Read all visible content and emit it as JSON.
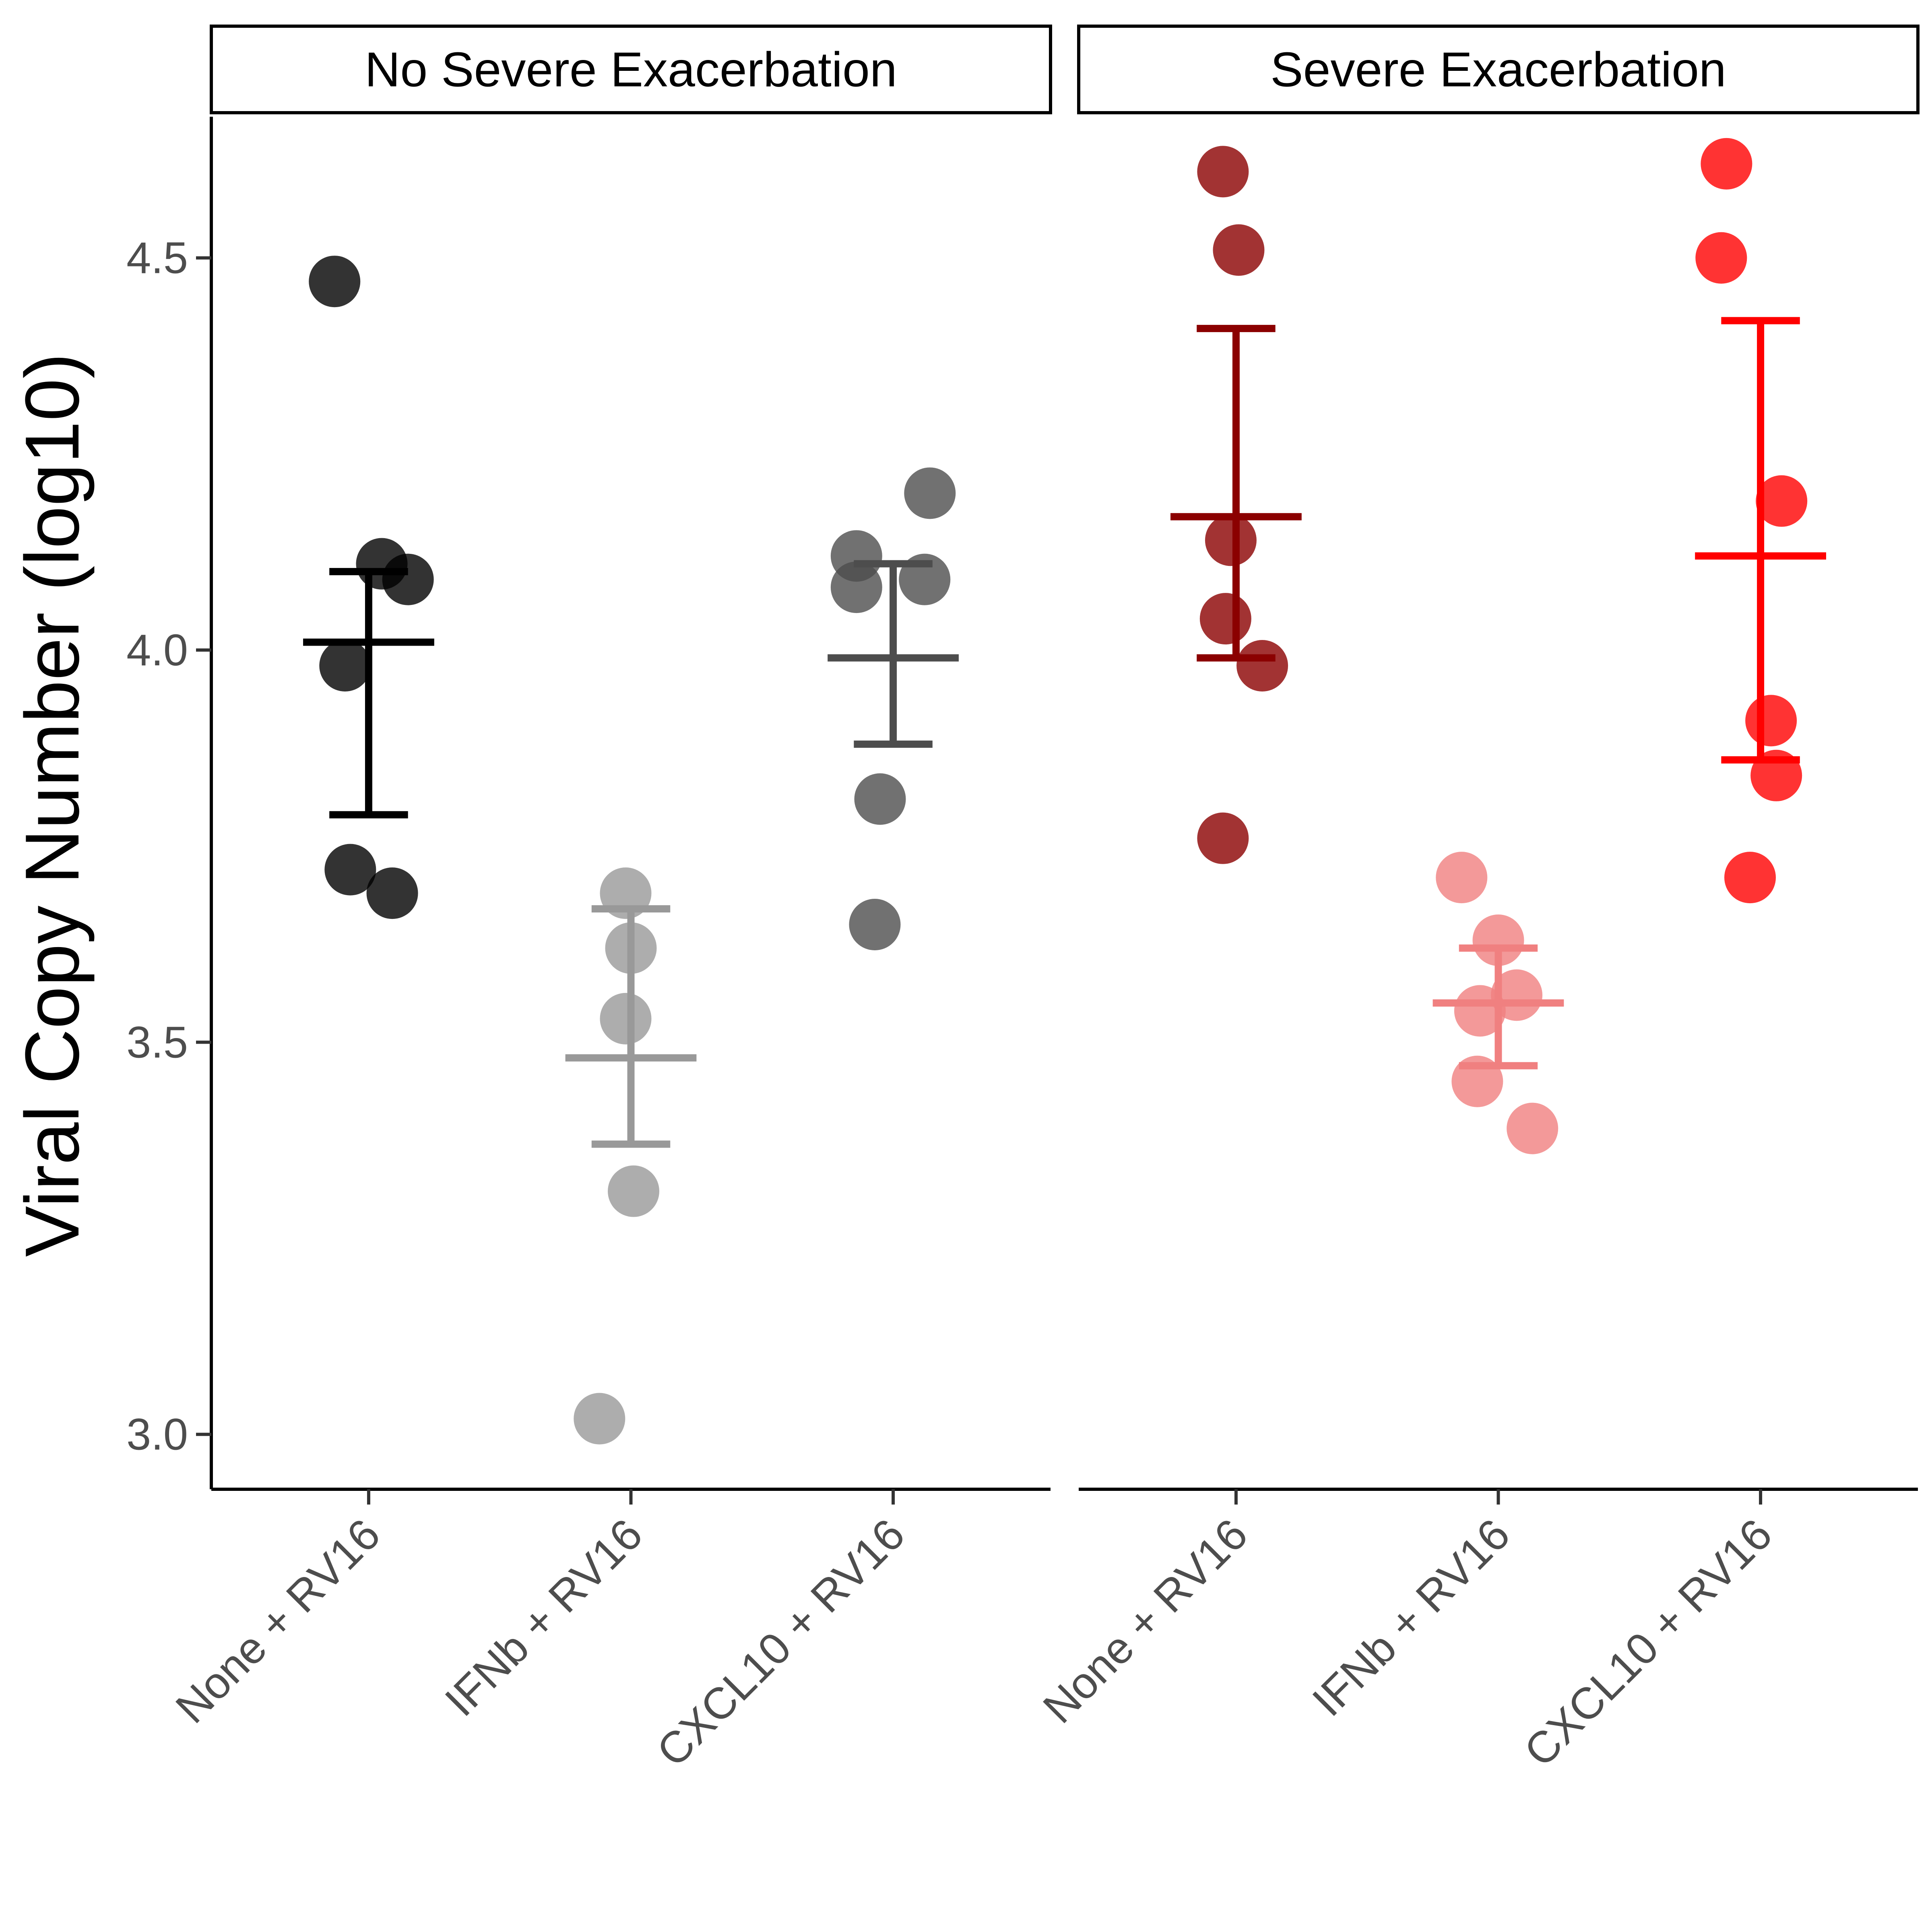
{
  "chart_data": {
    "type": "scatter",
    "subtype": "dot-plot-with-mean-and-error-bars",
    "title": "",
    "xlabel": "",
    "ylabel": "Viral Copy Number (log10)",
    "ylim": [
      2.93,
      4.68
    ],
    "yticks": [
      3.0,
      3.5,
      4.0,
      4.5
    ],
    "ytick_labels": [
      "3.0",
      "3.5",
      "4.0",
      "4.5"
    ],
    "grid": false,
    "legend": "none",
    "categories": [
      "None + RV16",
      "IFNb + RV16",
      "CXCL10 + RV16"
    ],
    "panels": [
      {
        "label": "No Severe Exacerbation",
        "groups": [
          {
            "category": "None + RV16",
            "color": "#000000",
            "points": [
              {
                "x": -0.13,
                "y": 4.47
              },
              {
                "x": 0.05,
                "y": 4.11
              },
              {
                "x": 0.15,
                "y": 4.09
              },
              {
                "x": -0.09,
                "y": 3.98
              },
              {
                "x": -0.07,
                "y": 3.72
              },
              {
                "x": 0.09,
                "y": 3.69
              }
            ],
            "mean": 4.01,
            "lower": 3.79,
            "upper": 4.1
          },
          {
            "category": "IFNb + RV16",
            "color": "#999999",
            "points": [
              {
                "x": -0.02,
                "y": 3.69
              },
              {
                "x": 0.0,
                "y": 3.62
              },
              {
                "x": -0.02,
                "y": 3.53
              },
              {
                "x": 0.01,
                "y": 3.31
              },
              {
                "x": -0.12,
                "y": 3.02
              }
            ],
            "mean": 3.48,
            "lower": 3.37,
            "upper": 3.67
          },
          {
            "category": "CXCL10 + RV16",
            "color": "#4d4d4d",
            "points": [
              {
                "x": 0.14,
                "y": 4.2
              },
              {
                "x": -0.14,
                "y": 4.12
              },
              {
                "x": -0.14,
                "y": 4.08
              },
              {
                "x": 0.12,
                "y": 4.09
              },
              {
                "x": -0.05,
                "y": 3.81
              },
              {
                "x": -0.07,
                "y": 3.65
              }
            ],
            "mean": 3.99,
            "lower": 3.88,
            "upper": 4.11
          }
        ]
      },
      {
        "label": "Severe Exacerbation",
        "groups": [
          {
            "category": "None + RV16",
            "color": "#8b0000",
            "points": [
              {
                "x": -0.05,
                "y": 4.61
              },
              {
                "x": 0.01,
                "y": 4.51
              },
              {
                "x": -0.02,
                "y": 4.14
              },
              {
                "x": -0.04,
                "y": 4.04
              },
              {
                "x": 0.1,
                "y": 3.98
              },
              {
                "x": -0.05,
                "y": 3.76
              }
            ],
            "mean": 4.17,
            "lower": 3.99,
            "upper": 4.41
          },
          {
            "category": "IFNb + RV16",
            "color": "#f08080",
            "points": [
              {
                "x": -0.14,
                "y": 3.71
              },
              {
                "x": 0.0,
                "y": 3.63
              },
              {
                "x": 0.07,
                "y": 3.56
              },
              {
                "x": -0.07,
                "y": 3.54
              },
              {
                "x": -0.08,
                "y": 3.45
              },
              {
                "x": 0.13,
                "y": 3.39
              }
            ],
            "mean": 3.55,
            "lower": 3.47,
            "upper": 3.62
          },
          {
            "category": "CXCL10 + RV16",
            "color": "#ff0000",
            "points": [
              {
                "x": -0.13,
                "y": 4.62
              },
              {
                "x": -0.15,
                "y": 4.5
              },
              {
                "x": 0.08,
                "y": 4.19
              },
              {
                "x": 0.04,
                "y": 3.91
              },
              {
                "x": 0.06,
                "y": 3.84
              },
              {
                "x": -0.04,
                "y": 3.71
              }
            ],
            "mean": 4.12,
            "lower": 3.86,
            "upper": 4.42
          }
        ]
      }
    ]
  }
}
